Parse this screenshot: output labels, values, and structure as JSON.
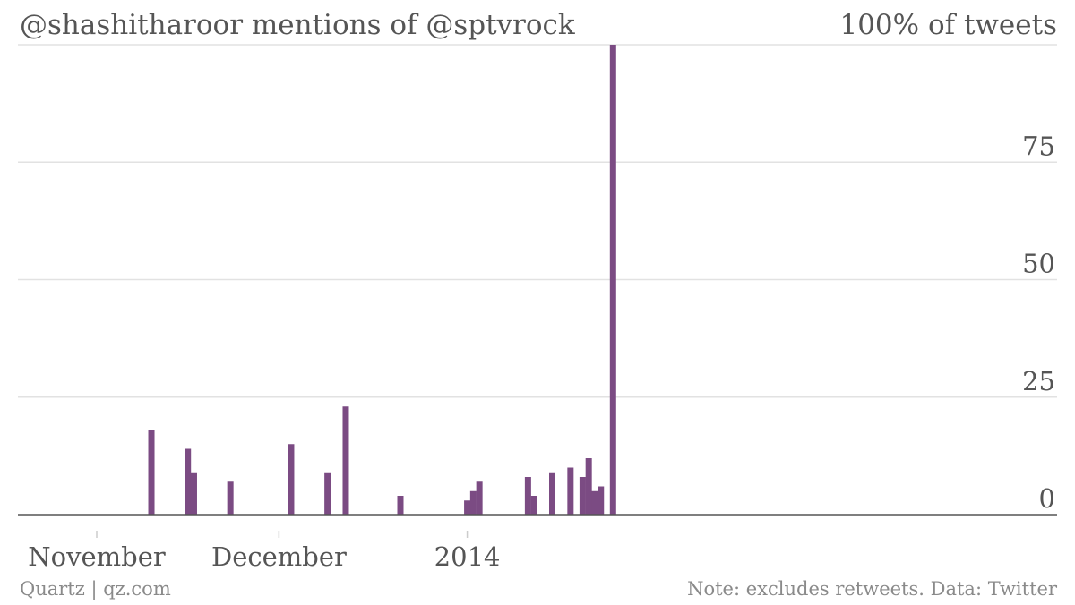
{
  "chart_data": {
    "type": "bar",
    "title": "@shashitharoor mentions of @sptvrock",
    "unit_label": "100% of tweets",
    "ylabel": "",
    "xlabel": "",
    "ylim": [
      0,
      100
    ],
    "y_ticks": [
      "0",
      "25",
      "50",
      "75"
    ],
    "x_ticks": [
      "November",
      "December",
      "2014"
    ],
    "grid": true,
    "color": "#7b4b83",
    "series": [
      {
        "x": [
          9,
          15,
          16,
          22,
          32,
          38,
          41,
          50,
          61,
          62,
          63,
          71,
          72,
          75,
          78,
          80,
          81,
          82,
          83,
          85
        ],
        "values": [
          18,
          14,
          9,
          7,
          15,
          9,
          23,
          4,
          3,
          5,
          7,
          8,
          4,
          9,
          10,
          8,
          12,
          5,
          6,
          100
        ]
      }
    ]
  },
  "footer": {
    "source": "Quartz | qz.com",
    "note": "Note: excludes retweets. Data: Twitter"
  }
}
